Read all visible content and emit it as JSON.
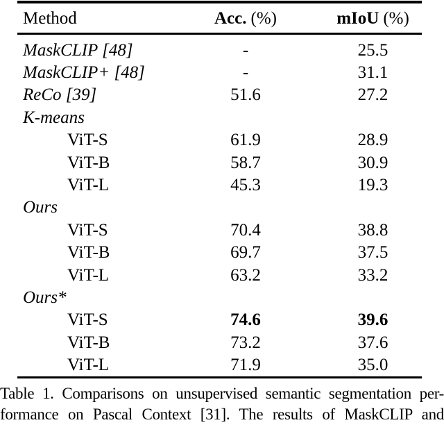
{
  "page": {
    "background_color": "#ffffff",
    "text_color": "#000000"
  },
  "table": {
    "header": {
      "method": "Method",
      "acc_name": "Acc.",
      "acc_unit": "(%)",
      "miou_name": "mIoU",
      "miou_unit": "(%)"
    },
    "rows": [
      {
        "method": "MaskCLIP [48]",
        "type": "method",
        "acc": "-",
        "miou": "25.5",
        "bold": false
      },
      {
        "method": "MaskCLIP+ [48]",
        "type": "method",
        "acc": "-",
        "miou": "31.1",
        "bold": false
      },
      {
        "method": "ReCo [39]",
        "type": "method",
        "acc": "51.6",
        "miou": "27.2",
        "bold": false
      },
      {
        "method": "K-means",
        "type": "group",
        "acc": "",
        "miou": "",
        "bold": false
      },
      {
        "method": "ViT-S",
        "type": "variant",
        "acc": "61.9",
        "miou": "28.9",
        "bold": false
      },
      {
        "method": "ViT-B",
        "type": "variant",
        "acc": "58.7",
        "miou": "30.9",
        "bold": false
      },
      {
        "method": "ViT-L",
        "type": "variant",
        "acc": "45.3",
        "miou": "19.3",
        "bold": false
      },
      {
        "method": "Ours",
        "type": "group",
        "acc": "",
        "miou": "",
        "bold": false
      },
      {
        "method": "ViT-S",
        "type": "variant",
        "acc": "70.4",
        "miou": "38.8",
        "bold": false
      },
      {
        "method": "ViT-B",
        "type": "variant",
        "acc": "69.7",
        "miou": "37.5",
        "bold": false
      },
      {
        "method": "ViT-L",
        "type": "variant",
        "acc": "63.2",
        "miou": "33.2",
        "bold": false
      },
      {
        "method": "Ours*",
        "type": "group",
        "acc": "",
        "miou": "",
        "bold": false
      },
      {
        "method": "ViT-S",
        "type": "variant",
        "acc": "74.6",
        "miou": "39.6",
        "bold": true
      },
      {
        "method": "ViT-B",
        "type": "variant",
        "acc": "73.2",
        "miou": "37.6",
        "bold": false
      },
      {
        "method": "ViT-L",
        "type": "variant",
        "acc": "71.9",
        "miou": "35.0",
        "bold": false
      }
    ]
  },
  "caption": {
    "line1": "Table 1. Comparisons on unsupervised semantic segmentation per-",
    "line2": "formance on Pascal Context [31]. The results of MaskCLIP and"
  }
}
